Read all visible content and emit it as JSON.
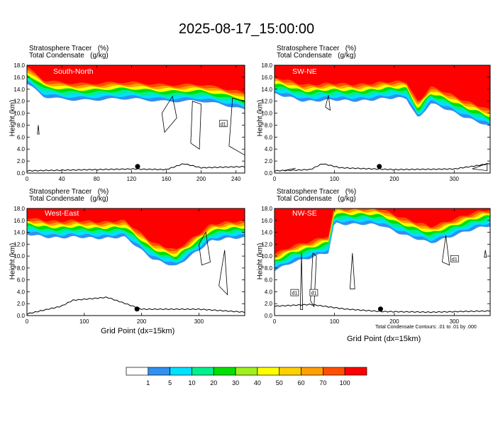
{
  "figure": {
    "title": "2025-08-17_15:00:00",
    "xlabel": "Grid Point (dx=15km)",
    "ylabel": "Height (km)",
    "field_label": "Stratosphere Tracer   (%)",
    "contour_label": "Total Condensate   (g/kg)",
    "contour_note": "Total Condensate Contours: .01 to .01 by .000",
    "domain_marker": "d1"
  },
  "colorbar": {
    "levels": [
      "1",
      "5",
      "10",
      "20",
      "30",
      "40",
      "50",
      "60",
      "70",
      "100"
    ],
    "colors": [
      "#ffffff",
      "#3090f0",
      "#00e0ff",
      "#00f090",
      "#00e000",
      "#a0f020",
      "#ffff00",
      "#ffd000",
      "#ffa000",
      "#ff5000",
      "#ff0000"
    ]
  },
  "chart_data": [
    {
      "type": "heatmap",
      "panel_label": "South-North",
      "ylim": [
        0,
        18
      ],
      "y_ticks": [
        "0.0",
        "2.0",
        "4.0",
        "6.0",
        "8.0",
        "10.0",
        "12.0",
        "14.0",
        "16.0",
        "18.0"
      ],
      "xlim": [
        0,
        250
      ],
      "x_ticks": [
        0,
        40,
        80,
        120,
        160,
        200,
        240
      ],
      "tropopause_km": [
        [
          0,
          15.8
        ],
        [
          20,
          13.5
        ],
        [
          40,
          13.2
        ],
        [
          80,
          13.2
        ],
        [
          120,
          13.2
        ],
        [
          160,
          13.0
        ],
        [
          200,
          12.8
        ],
        [
          240,
          12.0
        ],
        [
          250,
          11.5
        ]
      ],
      "terrain_km": [
        [
          0,
          0.3
        ],
        [
          40,
          0.4
        ],
        [
          80,
          0.5
        ],
        [
          120,
          0.6
        ],
        [
          160,
          0.5
        ],
        [
          180,
          1.5
        ],
        [
          200,
          0.8
        ],
        [
          250,
          1.0
        ]
      ],
      "dot": [
        127,
        1.1
      ],
      "d1_marker": [
        225,
        8.2
      ],
      "cloud_contours": [
        [
          [
            155,
            10.0
          ],
          [
            167,
            12.8
          ],
          [
            172,
            9.2
          ],
          [
            158,
            6.8
          ],
          [
            155,
            10.0
          ]
        ],
        [
          [
            188,
            5.0
          ],
          [
            190,
            12.0
          ],
          [
            200,
            11.5
          ],
          [
            198,
            4.0
          ],
          [
            188,
            5.0
          ]
        ],
        [
          [
            232,
            4.5
          ],
          [
            236,
            12.5
          ],
          [
            250,
            12.0
          ],
          [
            250,
            3.0
          ],
          [
            232,
            4.5
          ]
        ],
        [
          [
            12,
            6.5
          ],
          [
            13,
            8.0
          ],
          [
            14,
            6.5
          ],
          [
            12,
            6.5
          ]
        ]
      ]
    },
    {
      "type": "heatmap",
      "panel_label": "SW-NE",
      "ylim": [
        0,
        18
      ],
      "y_ticks": [
        "0.0",
        "2.0",
        "4.0",
        "6.0",
        "8.0",
        "10.0",
        "12.0",
        "14.0",
        "16.0",
        "18.0"
      ],
      "xlim": [
        0,
        360
      ],
      "x_ticks": [
        0,
        100,
        200,
        300
      ],
      "tropopause_km": [
        [
          0,
          14.0
        ],
        [
          50,
          13.0
        ],
        [
          120,
          13.0
        ],
        [
          180,
          13.2
        ],
        [
          220,
          13.5
        ],
        [
          240,
          10.0
        ],
        [
          260,
          12.5
        ],
        [
          300,
          11.0
        ],
        [
          340,
          9.5
        ],
        [
          360,
          8.5
        ]
      ],
      "terrain_km": [
        [
          0,
          0.3
        ],
        [
          60,
          0.5
        ],
        [
          80,
          1.5
        ],
        [
          110,
          0.8
        ],
        [
          200,
          0.5
        ],
        [
          300,
          0.6
        ],
        [
          360,
          1.5
        ]
      ],
      "dot": [
        175,
        1.1
      ],
      "d1_marker": null,
      "cloud_contours": [
        [
          [
            85,
            11.0
          ],
          [
            90,
            13.0
          ],
          [
            93,
            10.5
          ],
          [
            85,
            11.0
          ]
        ],
        [
          [
            15,
            0.4
          ],
          [
            35,
            0.8
          ],
          [
            15,
            0.4
          ]
        ],
        [
          [
            330,
            0.7
          ],
          [
            355,
            1.6
          ],
          [
            355,
            0.4
          ],
          [
            330,
            0.7
          ]
        ]
      ]
    },
    {
      "type": "heatmap",
      "panel_label": "West-East",
      "ylim": [
        0,
        18
      ],
      "y_ticks": [
        "0.0",
        "2.0",
        "4.0",
        "6.0",
        "8.0",
        "10.0",
        "12.0",
        "14.0",
        "16.0",
        "18.0"
      ],
      "xlim": [
        0,
        380
      ],
      "x_ticks": [
        0,
        100,
        200,
        300
      ],
      "tropopause_km": [
        [
          0,
          14.5
        ],
        [
          60,
          14.0
        ],
        [
          120,
          14.0
        ],
        [
          170,
          14.0
        ],
        [
          220,
          10.5
        ],
        [
          260,
          9.0
        ],
        [
          320,
          13.5
        ],
        [
          380,
          14.0
        ]
      ],
      "terrain_km": [
        [
          0,
          0.2
        ],
        [
          60,
          1.5
        ],
        [
          80,
          2.5
        ],
        [
          140,
          3.0
        ],
        [
          200,
          1.0
        ],
        [
          300,
          1.0
        ],
        [
          380,
          0.5
        ]
      ],
      "dot": [
        192,
        1.1
      ],
      "d1_marker": null,
      "cloud_contours": [
        [
          [
            300,
            12.0
          ],
          [
            312,
            14.0
          ],
          [
            320,
            9.0
          ],
          [
            305,
            8.5
          ],
          [
            300,
            12.0
          ]
        ],
        [
          [
            335,
            5.0
          ],
          [
            345,
            11.0
          ],
          [
            350,
            3.5
          ],
          [
            335,
            5.0
          ]
        ]
      ]
    },
    {
      "type": "heatmap",
      "panel_label": "NW-SE",
      "ylim": [
        0,
        18
      ],
      "y_ticks": [
        "0.0",
        "2.0",
        "4.0",
        "6.0",
        "8.0",
        "10.0",
        "12.0",
        "14.0",
        "16.0",
        "18.0"
      ],
      "xlim": [
        0,
        360
      ],
      "x_ticks": [
        0,
        100,
        200,
        300
      ],
      "tropopause_km": [
        [
          0,
          8.5
        ],
        [
          30,
          10.0
        ],
        [
          60,
          10.5
        ],
        [
          90,
          11.5
        ],
        [
          100,
          16.5
        ],
        [
          180,
          16.0
        ],
        [
          230,
          14.0
        ],
        [
          260,
          13.0
        ],
        [
          300,
          14.5
        ],
        [
          340,
          15.5
        ],
        [
          360,
          16.0
        ]
      ],
      "terrain_km": [
        [
          0,
          1.5
        ],
        [
          60,
          1.8
        ],
        [
          120,
          1.0
        ],
        [
          180,
          0.6
        ],
        [
          260,
          0.5
        ],
        [
          360,
          0.7
        ]
      ],
      "dot": [
        177,
        1.1
      ],
      "d1_marker": [
        [
          33,
          3.8
        ],
        [
          65,
          3.8
        ],
        [
          300,
          9.5
        ]
      ],
      "cloud_contours": [
        [
          [
            60,
            2.5
          ],
          [
            64,
            10.5
          ],
          [
            70,
            10.0
          ],
          [
            66,
            1.5
          ],
          [
            60,
            2.5
          ]
        ],
        [
          [
            43,
            1.0
          ],
          [
            45,
            10.5
          ],
          [
            47,
            1.0
          ],
          [
            43,
            1.0
          ]
        ],
        [
          [
            126,
            4.5
          ],
          [
            130,
            10.5
          ],
          [
            134,
            4.5
          ],
          [
            126,
            4.5
          ]
        ],
        [
          [
            280,
            9.0
          ],
          [
            286,
            13.5
          ],
          [
            292,
            8.5
          ],
          [
            280,
            9.0
          ]
        ],
        [
          [
            350,
            9.8
          ],
          [
            352,
            11.0
          ],
          [
            354,
            9.8
          ],
          [
            350,
            9.8
          ]
        ]
      ]
    }
  ]
}
